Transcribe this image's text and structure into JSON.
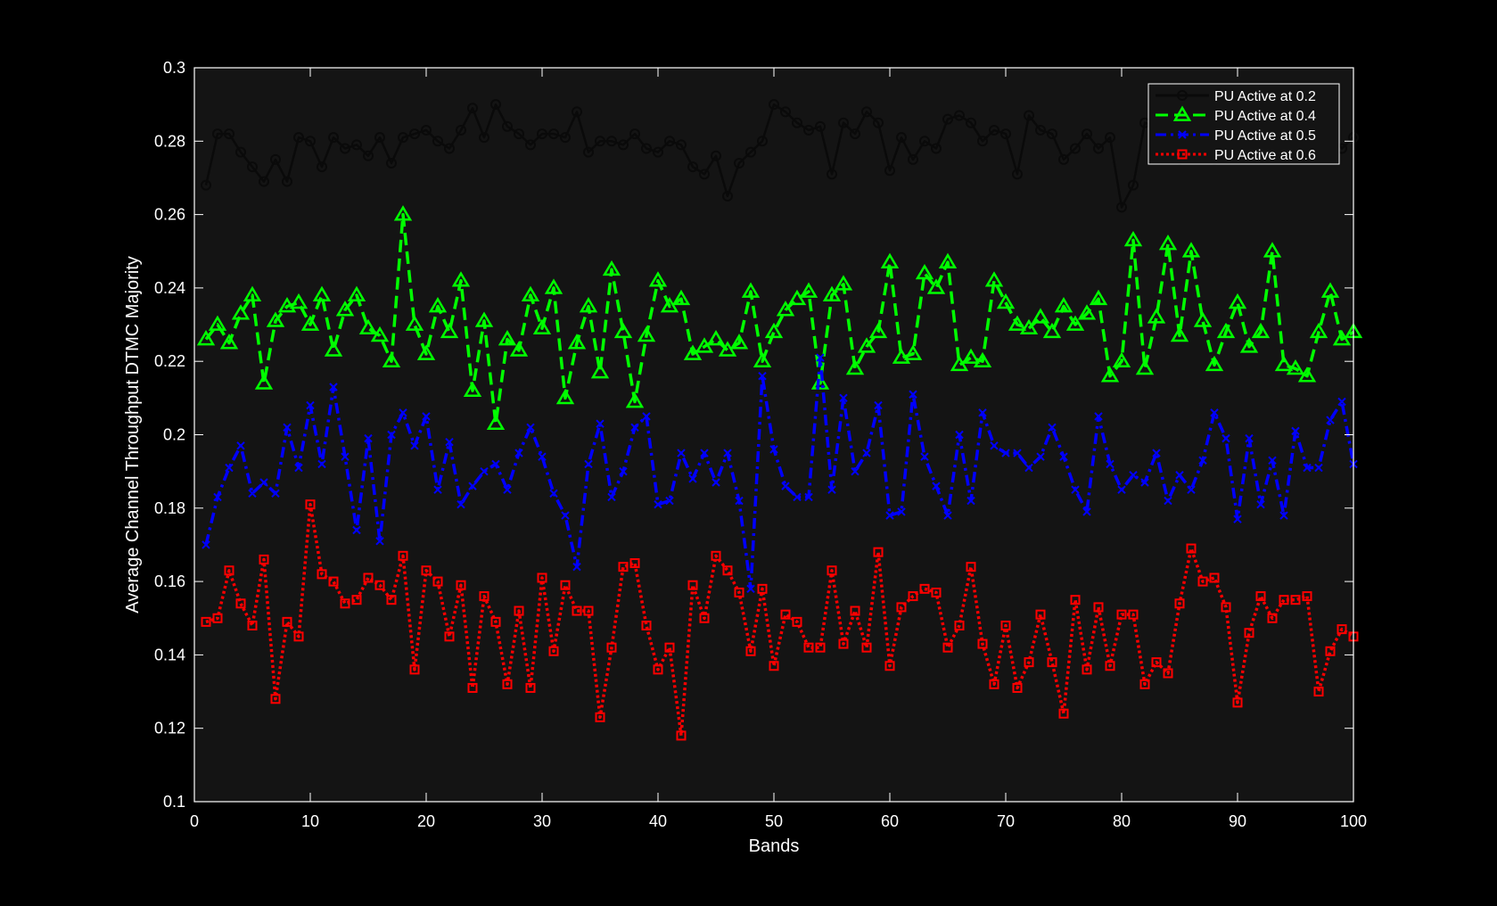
{
  "colors": {
    "background": "#000000",
    "plot_background": "#141414",
    "axis": "#ffffff",
    "text": "#ffffff",
    "legend_background": "#141414"
  },
  "chart_data": {
    "type": "line",
    "title": "",
    "xlabel": "Bands",
    "ylabel": "Average Channel Throughput DTMC Majority",
    "xlim": [
      0,
      100
    ],
    "ylim": [
      0.1,
      0.3
    ],
    "xticks": [
      0,
      10,
      20,
      30,
      40,
      50,
      60,
      70,
      80,
      90,
      100
    ],
    "xtick_labels": [
      "0",
      "10",
      "20",
      "30",
      "40",
      "50",
      "60",
      "70",
      "80",
      "90",
      "100"
    ],
    "yticks": [
      0.1,
      0.12,
      0.14,
      0.16,
      0.18,
      0.2,
      0.22,
      0.24,
      0.26,
      0.28,
      0.3
    ],
    "ytick_labels": [
      "0.1",
      "0.12",
      "0.14",
      "0.16",
      "0.18",
      "0.2",
      "0.22",
      "0.24",
      "0.26",
      "0.28",
      "0.3"
    ],
    "grid": false,
    "legend_position": "top-right",
    "x": [
      1,
      2,
      3,
      4,
      5,
      6,
      7,
      8,
      9,
      10,
      11,
      12,
      13,
      14,
      15,
      16,
      17,
      18,
      19,
      20,
      21,
      22,
      23,
      24,
      25,
      26,
      27,
      28,
      29,
      30,
      31,
      32,
      33,
      34,
      35,
      36,
      37,
      38,
      39,
      40,
      41,
      42,
      43,
      44,
      45,
      46,
      47,
      48,
      49,
      50,
      51,
      52,
      53,
      54,
      55,
      56,
      57,
      58,
      59,
      60,
      61,
      62,
      63,
      64,
      65,
      66,
      67,
      68,
      69,
      70,
      71,
      72,
      73,
      74,
      75,
      76,
      77,
      78,
      79,
      80,
      81,
      82,
      83,
      84,
      85,
      86,
      87,
      88,
      89,
      90,
      91,
      92,
      93,
      94,
      95,
      96,
      97,
      98,
      99,
      100
    ],
    "series": [
      {
        "name": "PU Active at 0.2",
        "color": "#0a0a0a",
        "line_style": "solid",
        "marker": "circle",
        "values": [
          0.268,
          0.282,
          0.282,
          0.277,
          0.273,
          0.269,
          0.275,
          0.269,
          0.281,
          0.28,
          0.273,
          0.281,
          0.278,
          0.279,
          0.276,
          0.281,
          0.274,
          0.281,
          0.282,
          0.283,
          0.28,
          0.278,
          0.283,
          0.289,
          0.281,
          0.29,
          0.284,
          0.282,
          0.279,
          0.282,
          0.282,
          0.281,
          0.288,
          0.277,
          0.28,
          0.28,
          0.279,
          0.282,
          0.278,
          0.277,
          0.28,
          0.279,
          0.273,
          0.271,
          0.276,
          0.265,
          0.274,
          0.277,
          0.28,
          0.29,
          0.288,
          0.285,
          0.283,
          0.284,
          0.271,
          0.285,
          0.282,
          0.288,
          0.285,
          0.272,
          0.281,
          0.275,
          0.28,
          0.278,
          0.286,
          0.287,
          0.285,
          0.28,
          0.283,
          0.282,
          0.271,
          0.287,
          0.283,
          0.282,
          0.275,
          0.278,
          0.282,
          0.278,
          0.281,
          0.262,
          0.268,
          0.285,
          0.284,
          0.278,
          0.275,
          0.282,
          0.276,
          0.275,
          0.279,
          0.286,
          0.287,
          0.281,
          0.287,
          0.276,
          0.278,
          0.283,
          0.279,
          0.282,
          0.278,
          0.281
        ]
      },
      {
        "name": "PU Active at 0.4",
        "color": "#00ff00",
        "line_style": "dashed",
        "marker": "triangle",
        "values": [
          0.226,
          0.23,
          0.225,
          0.233,
          0.238,
          0.214,
          0.231,
          0.235,
          0.236,
          0.23,
          0.238,
          0.223,
          0.234,
          0.238,
          0.229,
          0.227,
          0.22,
          0.26,
          0.23,
          0.222,
          0.235,
          0.228,
          0.242,
          0.212,
          0.231,
          0.203,
          0.226,
          0.223,
          0.238,
          0.229,
          0.24,
          0.21,
          0.225,
          0.235,
          0.217,
          0.245,
          0.228,
          0.209,
          0.227,
          0.242,
          0.235,
          0.237,
          0.222,
          0.224,
          0.226,
          0.223,
          0.225,
          0.239,
          0.22,
          0.228,
          0.234,
          0.237,
          0.239,
          0.214,
          0.238,
          0.241,
          0.218,
          0.224,
          0.228,
          0.247,
          0.221,
          0.222,
          0.244,
          0.24,
          0.247,
          0.219,
          0.221,
          0.22,
          0.242,
          0.236,
          0.23,
          0.229,
          0.232,
          0.228,
          0.235,
          0.23,
          0.233,
          0.237,
          0.216,
          0.22,
          0.253,
          0.218,
          0.232,
          0.252,
          0.227,
          0.25,
          0.231,
          0.219,
          0.228,
          0.236,
          0.224,
          0.228,
          0.25,
          0.219,
          0.218,
          0.216,
          0.228,
          0.239,
          0.226,
          0.228
        ]
      },
      {
        "name": "PU Active at 0.5",
        "color": "#0000ff",
        "line_style": "dashdot",
        "marker": "x",
        "values": [
          0.17,
          0.183,
          0.191,
          0.197,
          0.184,
          0.187,
          0.184,
          0.202,
          0.191,
          0.208,
          0.192,
          0.213,
          0.194,
          0.174,
          0.199,
          0.171,
          0.2,
          0.206,
          0.197,
          0.205,
          0.185,
          0.198,
          0.181,
          0.186,
          0.19,
          0.192,
          0.185,
          0.195,
          0.202,
          0.194,
          0.184,
          0.178,
          0.164,
          0.192,
          0.203,
          0.183,
          0.19,
          0.202,
          0.205,
          0.181,
          0.182,
          0.195,
          0.188,
          0.195,
          0.187,
          0.195,
          0.182,
          0.158,
          0.216,
          0.196,
          0.186,
          0.183,
          0.183,
          0.221,
          0.185,
          0.21,
          0.19,
          0.195,
          0.208,
          0.178,
          0.179,
          0.211,
          0.194,
          0.186,
          0.178,
          0.2,
          0.182,
          0.206,
          0.197,
          0.195,
          0.195,
          0.191,
          0.194,
          0.202,
          0.194,
          0.185,
          0.179,
          0.205,
          0.192,
          0.185,
          0.189,
          0.187,
          0.195,
          0.182,
          0.189,
          0.185,
          0.193,
          0.206,
          0.199,
          0.177,
          0.199,
          0.181,
          0.193,
          0.178,
          0.201,
          0.191,
          0.191,
          0.204,
          0.209,
          0.192
        ]
      },
      {
        "name": "PU Active at 0.6",
        "color": "#ff0000",
        "line_style": "dotted",
        "marker": "square",
        "values": [
          0.149,
          0.15,
          0.163,
          0.154,
          0.148,
          0.166,
          0.128,
          0.149,
          0.145,
          0.181,
          0.162,
          0.16,
          0.154,
          0.155,
          0.161,
          0.159,
          0.155,
          0.167,
          0.136,
          0.163,
          0.16,
          0.145,
          0.159,
          0.131,
          0.156,
          0.149,
          0.132,
          0.152,
          0.131,
          0.161,
          0.141,
          0.159,
          0.152,
          0.152,
          0.123,
          0.142,
          0.164,
          0.165,
          0.148,
          0.136,
          0.142,
          0.118,
          0.159,
          0.15,
          0.167,
          0.163,
          0.157,
          0.141,
          0.158,
          0.137,
          0.151,
          0.149,
          0.142,
          0.142,
          0.163,
          0.143,
          0.152,
          0.142,
          0.168,
          0.137,
          0.153,
          0.156,
          0.158,
          0.157,
          0.142,
          0.148,
          0.164,
          0.143,
          0.132,
          0.148,
          0.131,
          0.138,
          0.151,
          0.138,
          0.124,
          0.155,
          0.136,
          0.153,
          0.137,
          0.151,
          0.151,
          0.132,
          0.138,
          0.135,
          0.154,
          0.169,
          0.16,
          0.161,
          0.153,
          0.127,
          0.146,
          0.156,
          0.15,
          0.155,
          0.155,
          0.156,
          0.13,
          0.141,
          0.147,
          0.145
        ]
      }
    ]
  }
}
